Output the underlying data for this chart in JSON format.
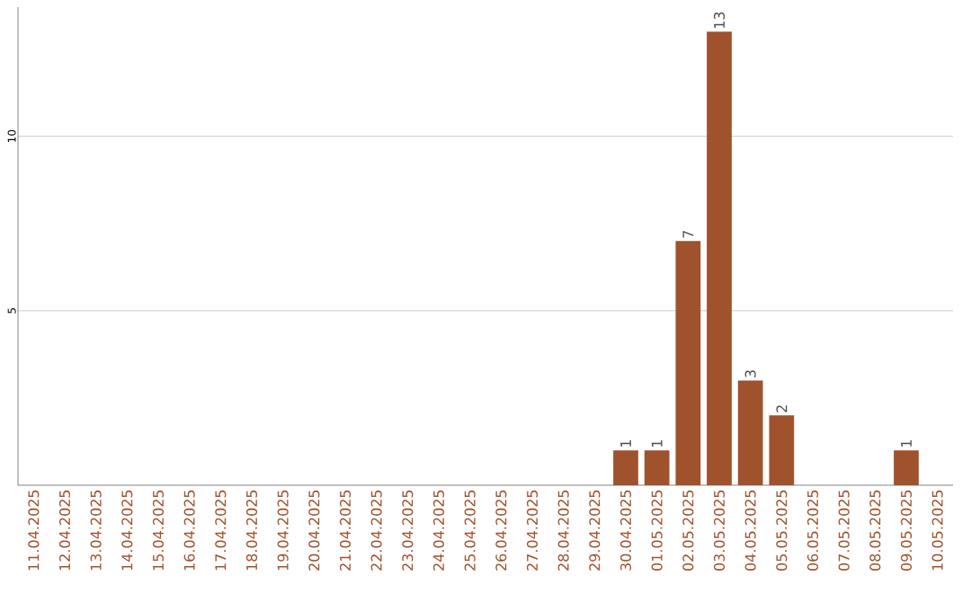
{
  "chart_data": {
    "type": "bar",
    "categories": [
      "11.04.2025",
      "12.04.2025",
      "13.04.2025",
      "14.04.2025",
      "15.04.2025",
      "16.04.2025",
      "17.04.2025",
      "18.04.2025",
      "19.04.2025",
      "20.04.2025",
      "21.04.2025",
      "22.04.2025",
      "23.04.2025",
      "24.04.2025",
      "25.04.2025",
      "26.04.2025",
      "27.04.2025",
      "28.04.2025",
      "29.04.2025",
      "30.04.2025",
      "01.05.2025",
      "02.05.2025",
      "03.05.2025",
      "04.05.2025",
      "05.05.2025",
      "06.05.2025",
      "07.05.2025",
      "08.05.2025",
      "09.05.2025",
      "10.05.2025"
    ],
    "values": [
      0,
      0,
      0,
      0,
      0,
      0,
      0,
      0,
      0,
      0,
      0,
      0,
      0,
      0,
      0,
      0,
      0,
      0,
      0,
      1,
      1,
      7,
      13,
      3,
      2,
      0,
      0,
      0,
      1,
      0
    ],
    "value_labels": [
      null,
      null,
      null,
      null,
      null,
      null,
      null,
      null,
      null,
      null,
      null,
      null,
      null,
      null,
      null,
      null,
      null,
      null,
      null,
      "1",
      "1",
      "7",
      "13",
      "3",
      "2",
      null,
      null,
      null,
      "1",
      null
    ],
    "color": "#a0522d",
    "ylim": [
      0,
      13.7
    ],
    "yticks": [
      5,
      10
    ],
    "grid": "y"
  }
}
